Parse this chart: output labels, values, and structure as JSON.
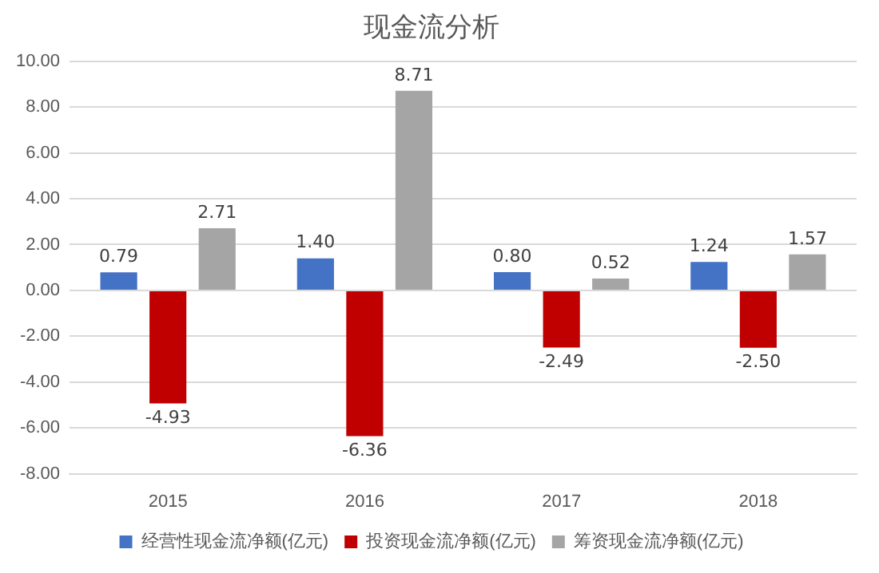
{
  "chart_data": {
    "type": "bar",
    "title": "现金流分析",
    "categories": [
      "2015",
      "2016",
      "2017",
      "2018"
    ],
    "series": [
      {
        "name": "经营性现金流净额(亿元)",
        "color": "#4472c4",
        "values": [
          0.79,
          1.4,
          0.8,
          1.24
        ],
        "value_labels": [
          "0.79",
          "1.40",
          "0.80",
          "1.24"
        ]
      },
      {
        "name": "投资现金流净额(亿元)",
        "color": "#c00000",
        "values": [
          -4.93,
          -6.36,
          -2.49,
          -2.5
        ],
        "value_labels": [
          "-4.93",
          "-6.36",
          "-2.49",
          "-2.50"
        ]
      },
      {
        "name": "筹资现金流净额(亿元)",
        "color": "#a5a5a5",
        "values": [
          2.71,
          8.71,
          0.52,
          1.57
        ],
        "value_labels": [
          "2.71",
          "8.71",
          "0.52",
          "1.57"
        ]
      }
    ],
    "ylim": [
      -8,
      10
    ],
    "yticks": [
      {
        "value": -8,
        "label": "-8.00"
      },
      {
        "value": -6,
        "label": "-6.00"
      },
      {
        "value": -4,
        "label": "-4.00"
      },
      {
        "value": -2,
        "label": "-2.00"
      },
      {
        "value": 0,
        "label": "0.00"
      },
      {
        "value": 2,
        "label": "2.00"
      },
      {
        "value": 4,
        "label": "4.00"
      },
      {
        "value": 6,
        "label": "6.00"
      },
      {
        "value": 8,
        "label": "8.00"
      },
      {
        "value": 10,
        "label": "10.00"
      }
    ],
    "grid": "y",
    "legend": "bottom"
  }
}
